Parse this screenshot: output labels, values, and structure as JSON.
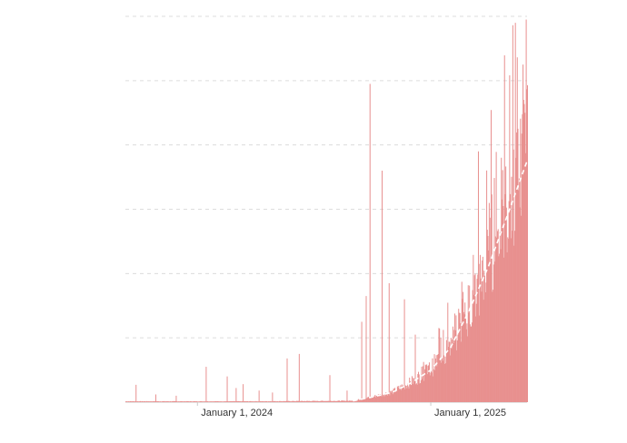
{
  "chart_data": {
    "type": "bar",
    "title": "",
    "xlabel": "",
    "ylabel": "",
    "x_tick_labels": [
      {
        "date": "2024-01-01",
        "label": "January 1, 2024"
      },
      {
        "date": "2025-01-01",
        "label": "January 1, 2025"
      }
    ],
    "x_range": [
      "2023-09-10",
      "2025-06-01"
    ],
    "y_range": [
      0,
      6
    ],
    "y_gridlines": [
      1,
      2,
      3,
      4,
      5,
      6
    ],
    "y_tick_labels_visible": false,
    "grid": "horizontal dashed",
    "bar_color": "#e8908f",
    "trend_line": {
      "style": "dashed",
      "color": "#ffffff",
      "points": [
        {
          "date": "2024-09-01",
          "value": 0.02
        },
        {
          "date": "2024-10-01",
          "value": 0.08
        },
        {
          "date": "2024-11-01",
          "value": 0.15
        },
        {
          "date": "2024-12-01",
          "value": 0.3
        },
        {
          "date": "2025-01-01",
          "value": 0.5
        },
        {
          "date": "2025-02-01",
          "value": 0.85
        },
        {
          "date": "2025-03-01",
          "value": 1.4
        },
        {
          "date": "2025-04-01",
          "value": 2.1
        },
        {
          "date": "2025-05-01",
          "value": 2.9
        },
        {
          "date": "2025-06-01",
          "value": 3.75
        }
      ]
    },
    "spikes": [
      {
        "date": "2023-09-26",
        "value": 0.27
      },
      {
        "date": "2023-10-27",
        "value": 0.12
      },
      {
        "date": "2023-11-28",
        "value": 0.1
      },
      {
        "date": "2024-01-14",
        "value": 0.55
      },
      {
        "date": "2024-02-16",
        "value": 0.4
      },
      {
        "date": "2024-03-01",
        "value": 0.22
      },
      {
        "date": "2024-03-12",
        "value": 0.28
      },
      {
        "date": "2024-04-06",
        "value": 0.18
      },
      {
        "date": "2024-04-27",
        "value": 0.15
      },
      {
        "date": "2024-05-20",
        "value": 0.68
      },
      {
        "date": "2024-06-08",
        "value": 0.75
      },
      {
        "date": "2024-07-26",
        "value": 0.42
      },
      {
        "date": "2024-08-22",
        "value": 0.18
      },
      {
        "date": "2024-09-14",
        "value": 1.25
      },
      {
        "date": "2024-09-21",
        "value": 1.65
      },
      {
        "date": "2024-09-27",
        "value": 4.95
      },
      {
        "date": "2024-10-16",
        "value": 3.6
      },
      {
        "date": "2024-10-27",
        "value": 1.85
      },
      {
        "date": "2024-11-20",
        "value": 1.6
      },
      {
        "date": "2024-12-07",
        "value": 1.05
      },
      {
        "date": "2025-01-16",
        "value": 1.0
      },
      {
        "date": "2025-02-12",
        "value": 1.05
      },
      {
        "date": "2025-02-21",
        "value": 1.4
      },
      {
        "date": "2025-03-16",
        "value": 3.9
      },
      {
        "date": "2025-03-18",
        "value": 2.15
      },
      {
        "date": "2025-04-24",
        "value": 3.05
      },
      {
        "date": "2025-05-14",
        "value": 3.8
      },
      {
        "date": "2025-05-25",
        "value": 5.25
      },
      {
        "date": "2025-05-28",
        "value": 4.5
      },
      {
        "date": "2025-05-30",
        "value": 5.95
      }
    ]
  }
}
